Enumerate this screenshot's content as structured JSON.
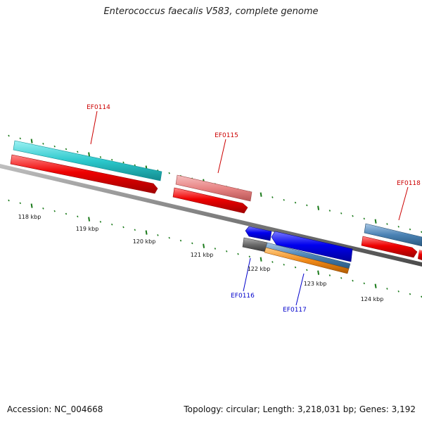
{
  "title": "Enterococcus faecalis V583, complete genome",
  "footer": {
    "accession": "Accession: NC_004668",
    "topology": "Topology: circular; Length: 3,218,031 bp; Genes: 3,192"
  },
  "scale_labels": [
    "118 kbp",
    "119 kbp",
    "120 kbp",
    "121 kbp",
    "122 kbp",
    "123 kbp",
    "124 kbp"
  ],
  "genes": [
    {
      "label": "EF0114",
      "strand": "forward",
      "color": "#cc0000"
    },
    {
      "label": "EF0115",
      "strand": "forward",
      "color": "#cc0000"
    },
    {
      "label": "EF0116",
      "strand": "reverse",
      "color": "#0000cc"
    },
    {
      "label": "EF0117",
      "strand": "reverse",
      "color": "#0000cc"
    },
    {
      "label": "EF0118",
      "strand": "forward",
      "color": "#cc0000"
    }
  ],
  "colors": {
    "backbone": "#808080",
    "tick": "#1a7a1a",
    "cds": "#ee0000",
    "protein_cyan": "#2cc8cc",
    "protein_pink": "#e88585",
    "protein_steel": "#4a82b4",
    "reverse_cds": "#0000ee",
    "orange": "#f08a1a",
    "gray": "#6a6a6a"
  }
}
